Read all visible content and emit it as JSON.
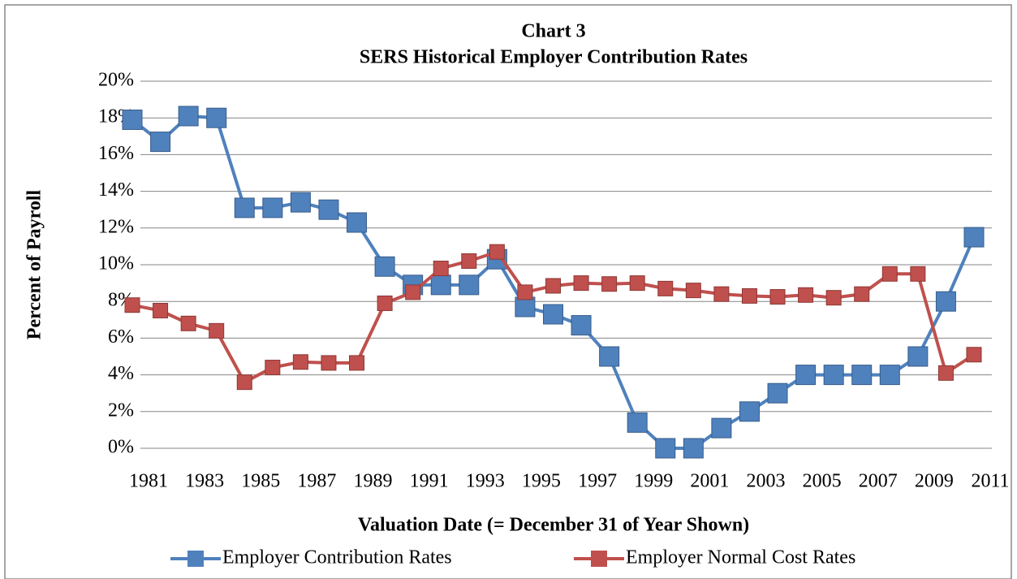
{
  "chart_data": {
    "type": "line",
    "title": "Chart 3",
    "subtitle": "SERS Historical Employer Contribution Rates",
    "x_label": "Valuation Date (= December 31 of Year Shown)",
    "y_label": "Percent of Payroll",
    "x": [
      1981,
      1982,
      1983,
      1984,
      1985,
      1986,
      1987,
      1988,
      1989,
      1990,
      1991,
      1992,
      1993,
      1994,
      1995,
      1996,
      1997,
      1998,
      1999,
      2000,
      2001,
      2002,
      2003,
      2004,
      2005,
      2006,
      2007,
      2008,
      2009,
      2010,
      2011
    ],
    "xlim": [
      1981,
      2011
    ],
    "xticks": [
      1981,
      1983,
      1985,
      1987,
      1989,
      1991,
      1993,
      1995,
      1997,
      1999,
      2001,
      2003,
      2005,
      2007,
      2009,
      2011
    ],
    "ylim": [
      0,
      20
    ],
    "yticks": [
      {
        "value": 0,
        "label": "0%"
      },
      {
        "value": 2,
        "label": "2%"
      },
      {
        "value": 4,
        "label": "4%"
      },
      {
        "value": 6,
        "label": "6%"
      },
      {
        "value": 8,
        "label": "8%"
      },
      {
        "value": 10,
        "label": "10%"
      },
      {
        "value": 12,
        "label": "12%"
      },
      {
        "value": 14,
        "label": "14%"
      },
      {
        "value": 16,
        "label": "16%"
      },
      {
        "value": 18,
        "label": "18%"
      },
      {
        "value": 20,
        "label": "20%"
      }
    ],
    "grid": true,
    "legend": "bottom",
    "series": [
      {
        "name": "Employer Contribution Rates",
        "color": "#4f81bd",
        "values": [
          17.9,
          16.7,
          18.1,
          18.0,
          13.1,
          13.1,
          13.4,
          13.0,
          12.3,
          9.9,
          8.9,
          8.9,
          8.9,
          10.3,
          7.7,
          7.3,
          6.7,
          5.0,
          1.4,
          0,
          0,
          1.1,
          2.0,
          3.0,
          4.0,
          4.0,
          4.0,
          4.0,
          5.0,
          8.0,
          11.5
        ]
      },
      {
        "name": "Employer Normal Cost Rates",
        "color": "#c0504d",
        "values": [
          7.8,
          7.5,
          6.8,
          6.4,
          3.6,
          4.4,
          4.7,
          4.65,
          4.65,
          7.9,
          8.5,
          9.8,
          10.2,
          10.7,
          8.5,
          8.85,
          9.0,
          8.95,
          9.0,
          8.7,
          8.6,
          8.4,
          8.3,
          8.25,
          8.35,
          8.2,
          8.4,
          9.5,
          9.5,
          4.1,
          5.1
        ]
      }
    ]
  }
}
